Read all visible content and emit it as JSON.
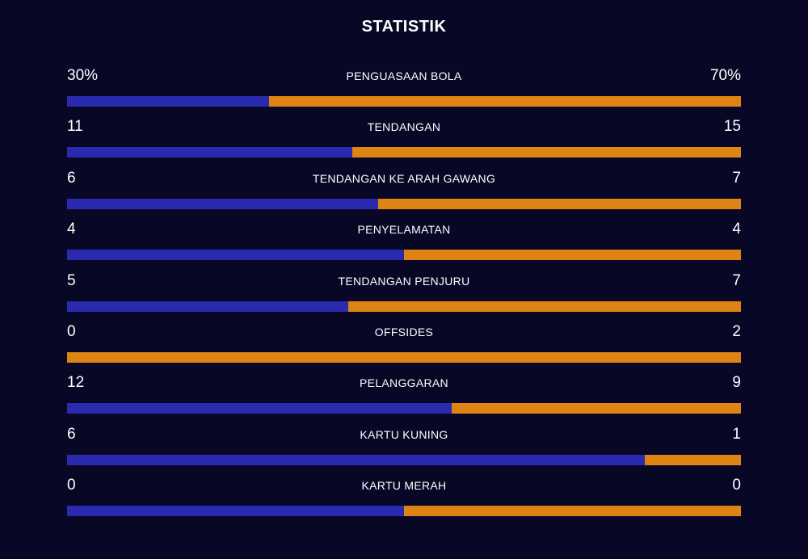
{
  "title": "STATISTIK",
  "colors": {
    "background": "#080726",
    "home": "#2a2ab0",
    "away": "#dd8415"
  },
  "stats": [
    {
      "label": "PENGUASAAN BOLA",
      "home": "30%",
      "away": "70%",
      "home_share": 0.3
    },
    {
      "label": "TENDANGAN",
      "home": "11",
      "away": "15",
      "home_share": 0.423
    },
    {
      "label": "TENDANGAN KE ARAH GAWANG",
      "home": "6",
      "away": "7",
      "home_share": 0.462
    },
    {
      "label": "PENYELAMATAN",
      "home": "4",
      "away": "4",
      "home_share": 0.5
    },
    {
      "label": "TENDANGAN PENJURU",
      "home": "5",
      "away": "7",
      "home_share": 0.417
    },
    {
      "label": "OFFSIDES",
      "home": "0",
      "away": "2",
      "home_share": 0.0
    },
    {
      "label": "PELANGGARAN",
      "home": "12",
      "away": "9",
      "home_share": 0.571
    },
    {
      "label": "KARTU KUNING",
      "home": "6",
      "away": "1",
      "home_share": 0.857
    },
    {
      "label": "KARTU MERAH",
      "home": "0",
      "away": "0",
      "home_share": 0.5
    }
  ]
}
